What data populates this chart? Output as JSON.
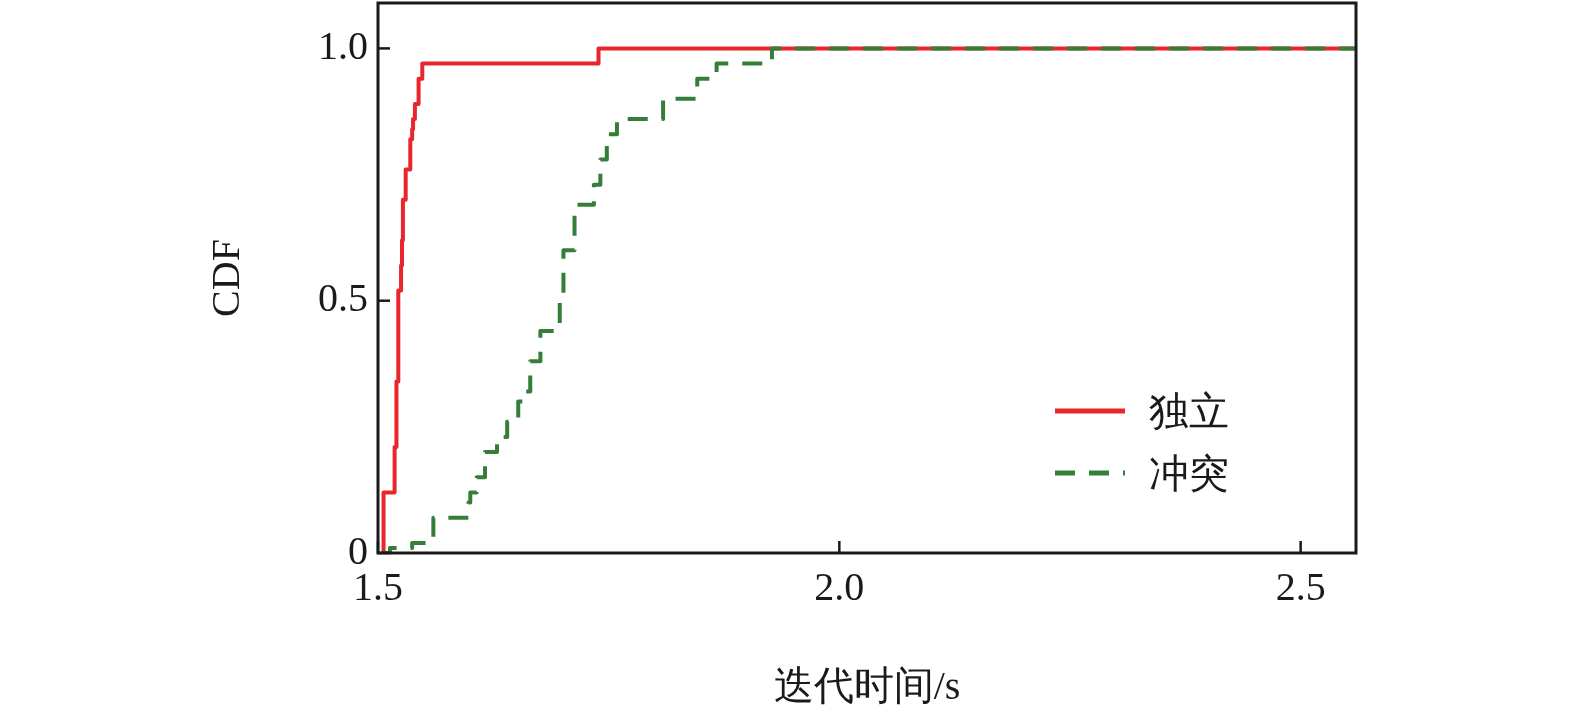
{
  "chart_data": {
    "type": "step",
    "xlabel": "迭代时间/s",
    "ylabel": "CDF",
    "xlim": [
      1.5,
      2.56
    ],
    "xticks": [
      1.5,
      {
        "value": 2,
        "label": "2.0"
      },
      2.5
    ],
    "ylim": [
      0,
      1.09
    ],
    "yticks": [
      0,
      0.5,
      {
        "value": 1,
        "label": "1.0"
      }
    ],
    "grid": false,
    "legend": "bottom right",
    "marker": "none",
    "series": [
      {
        "name": "独立",
        "color": "#e8262c",
        "line_style": "solid",
        "x": [
          1.504,
          1.506,
          1.518,
          1.52,
          1.522,
          1.525,
          1.526,
          1.527,
          1.53,
          1.535,
          1.537,
          1.538,
          1.54,
          1.544,
          1.548,
          1.739,
          2.56
        ],
        "values": [
          0,
          0.12,
          0.21,
          0.34,
          0.52,
          0.57,
          0.62,
          0.7,
          0.76,
          0.82,
          0.84,
          0.86,
          0.89,
          0.94,
          0.97,
          1.0,
          1.0
        ]
      },
      {
        "name": "冲突",
        "color": "#347e3a",
        "line_style": "dashed",
        "x": [
          1.504,
          1.513,
          1.537,
          1.558,
          1.56,
          1.598,
          1.6,
          1.607,
          1.616,
          1.629,
          1.64,
          1.652,
          1.658,
          1.665,
          1.676,
          1.697,
          1.701,
          1.713,
          1.734,
          1.741,
          1.748,
          1.759,
          1.809,
          1.846,
          1.867,
          1.927,
          2.56
        ],
        "values": [
          0,
          0.01,
          0.02,
          0.03,
          0.07,
          0.1,
          0.12,
          0.15,
          0.2,
          0.23,
          0.26,
          0.3,
          0.32,
          0.38,
          0.44,
          0.5,
          0.6,
          0.69,
          0.73,
          0.78,
          0.83,
          0.86,
          0.9,
          0.94,
          0.97,
          1.0,
          1.0
        ]
      }
    ]
  }
}
